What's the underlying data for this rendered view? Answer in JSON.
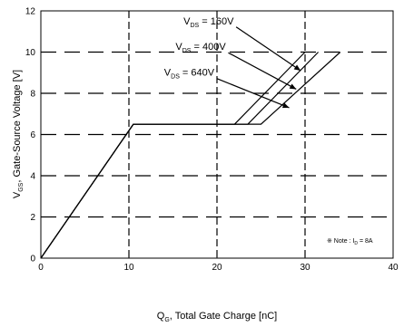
{
  "chart_data": {
    "type": "line",
    "xlabel_parts": {
      "sym": "Q",
      "sub": "G",
      "rest": ", Total Gate Charge [nC]"
    },
    "ylabel_parts": {
      "sym": "V",
      "sub": "GS",
      "rest": ", Gate-Source Voltage [V]"
    },
    "xlim": [
      0,
      40
    ],
    "ylim": [
      0,
      12
    ],
    "x_ticks": [
      0,
      10,
      20,
      30,
      40
    ],
    "y_ticks": [
      0,
      2,
      4,
      6,
      8,
      10,
      12
    ],
    "grid": "dashed",
    "series": [
      {
        "name": "VDS = 160V",
        "x": [
          0,
          10.5,
          22,
          30
        ],
        "y": [
          0,
          6.5,
          6.5,
          10
        ]
      },
      {
        "name": "VDS = 400V",
        "x": [
          0,
          10.5,
          23.5,
          31.5
        ],
        "y": [
          0,
          6.5,
          6.5,
          10
        ]
      },
      {
        "name": "VDS = 640V",
        "x": [
          0,
          10.5,
          25,
          34
        ],
        "y": [
          0,
          6.5,
          6.5,
          10
        ]
      }
    ],
    "annotations": [
      {
        "sym": "V",
        "sub": "DS",
        "value": " = 160V",
        "series": 0,
        "tx": 16.2,
        "ty": 11.35,
        "ax": 29.5,
        "ay": 9.1
      },
      {
        "sym": "V",
        "sub": "DS",
        "value": " = 400V",
        "series": 1,
        "tx": 15.3,
        "ty": 10.1,
        "ax": 29.0,
        "ay": 8.2
      },
      {
        "sym": "V",
        "sub": "DS",
        "value": " = 640V",
        "series": 2,
        "tx": 14.0,
        "ty": 8.85,
        "ax": 28.2,
        "ay": 7.3
      }
    ],
    "note": {
      "prefix": "※ Note : I",
      "sub": "D",
      "suffix": " = 8A"
    }
  }
}
